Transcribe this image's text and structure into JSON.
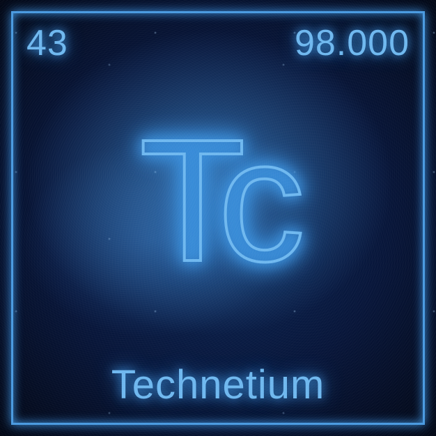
{
  "element": {
    "atomic_number": "43",
    "atomic_mass": "98.000",
    "symbol": "Tc",
    "name": "Technetium"
  },
  "style": {
    "text_color": "#6fb8ef",
    "glow_color": "#3a8dd8",
    "border_color": "#4a9ae0",
    "background_deep": "#030816",
    "background_mid": "#08163a",
    "background_light": "#0d2a5a",
    "nebula_accent": "#5aa8e8",
    "atomic_number_fontsize": 52,
    "atomic_mass_fontsize": 52,
    "symbol_fontsize": 250,
    "name_fontsize": 58,
    "frame_inset": 16,
    "frame_border_width": 3,
    "symbol_stroke_width": 4
  }
}
